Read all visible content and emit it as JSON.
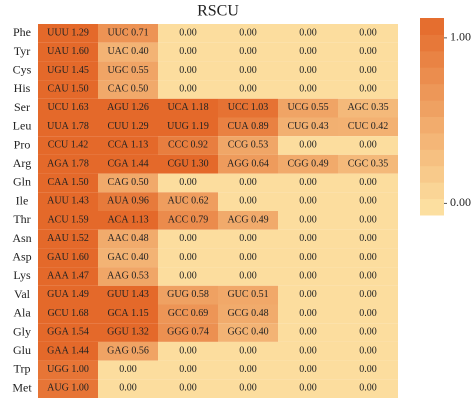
{
  "chart_data": {
    "type": "heatmap",
    "title": "RSCU",
    "low_color": "#fde4a5",
    "high_color": "#e4692a",
    "clim": [
      -0.07,
      1.12
    ],
    "cticks": [
      {
        "value": 0,
        "label": "0.00"
      },
      {
        "value": 1,
        "label": "1.00"
      }
    ],
    "rows": [
      {
        "name": "Phe",
        "codons": [
          "UUU",
          "UUC",
          null,
          null,
          null,
          null
        ],
        "values": [
          1.29,
          0.71,
          0,
          0,
          0,
          0
        ],
        "value_labels": [
          "1.29",
          "0.71",
          "0.00",
          "0.00",
          "0.00",
          "0.00"
        ]
      },
      {
        "name": "Tyr",
        "codons": [
          "UAU",
          "UAC",
          null,
          null,
          null,
          null
        ],
        "values": [
          1.6,
          0.4,
          0,
          0,
          0,
          0
        ],
        "value_labels": [
          "1.60",
          "0.40",
          "0.00",
          "0.00",
          "0.00",
          "0.00"
        ]
      },
      {
        "name": "Cys",
        "codons": [
          "UGU",
          "UGC",
          null,
          null,
          null,
          null
        ],
        "values": [
          1.45,
          0.55,
          0,
          0,
          0,
          0
        ],
        "value_labels": [
          "1.45",
          "0.55",
          "0.00",
          "0.00",
          "0.00",
          "0.00"
        ]
      },
      {
        "name": "His",
        "codons": [
          "CAU",
          "CAC",
          null,
          null,
          null,
          null
        ],
        "values": [
          1.5,
          0.5,
          0,
          0,
          0,
          0
        ],
        "value_labels": [
          "1.50",
          "0.50",
          "0.00",
          "0.00",
          "0.00",
          "0.00"
        ]
      },
      {
        "name": "Ser",
        "codons": [
          "UCU",
          "AGU",
          "UCA",
          "UCC",
          "UCG",
          "AGC"
        ],
        "values": [
          1.63,
          1.26,
          1.18,
          1.03,
          0.55,
          0.35
        ],
        "value_labels": [
          "1.63",
          "1.26",
          "1.18",
          "1.03",
          "0.55",
          "0.35"
        ]
      },
      {
        "name": "Leu",
        "codons": [
          "UUA",
          "CUU",
          "UUG",
          "CUA",
          "CUG",
          "CUC"
        ],
        "values": [
          1.78,
          1.29,
          1.19,
          0.89,
          0.43,
          0.42
        ],
        "value_labels": [
          "1.78",
          "1.29",
          "1.19",
          "0.89",
          "0.43",
          "0.42"
        ]
      },
      {
        "name": "Pro",
        "codons": [
          "CCU",
          "CCA",
          "CCC",
          "CCG",
          null,
          null
        ],
        "values": [
          1.42,
          1.13,
          0.92,
          0.53,
          0,
          0
        ],
        "value_labels": [
          "1.42",
          "1.13",
          "0.92",
          "0.53",
          "0.00",
          "0.00"
        ]
      },
      {
        "name": "Arg",
        "codons": [
          "AGA",
          "CGA",
          "CGU",
          "AGG",
          "CGG",
          "CGC"
        ],
        "values": [
          1.78,
          1.44,
          1.3,
          0.64,
          0.49,
          0.35
        ],
        "value_labels": [
          "1.78",
          "1.44",
          "1.30",
          "0.64",
          "0.49",
          "0.35"
        ]
      },
      {
        "name": "Gln",
        "codons": [
          "CAA",
          "CAG",
          null,
          null,
          null,
          null
        ],
        "values": [
          1.5,
          0.5,
          0,
          0,
          0,
          0
        ],
        "value_labels": [
          "1.50",
          "0.50",
          "0.00",
          "0.00",
          "0.00",
          "0.00"
        ]
      },
      {
        "name": "Ile",
        "codons": [
          "AUU",
          "AUA",
          "AUC",
          null,
          null,
          null
        ],
        "values": [
          1.43,
          0.96,
          0.62,
          0,
          0,
          0
        ],
        "value_labels": [
          "1.43",
          "0.96",
          "0.62",
          "0.00",
          "0.00",
          "0.00"
        ]
      },
      {
        "name": "Thr",
        "codons": [
          "ACU",
          "ACA",
          "ACC",
          "ACG",
          null,
          null
        ],
        "values": [
          1.59,
          1.13,
          0.79,
          0.49,
          0,
          0
        ],
        "value_labels": [
          "1.59",
          "1.13",
          "0.79",
          "0.49",
          "0.00",
          "0.00"
        ]
      },
      {
        "name": "Asn",
        "codons": [
          "AAU",
          "AAC",
          null,
          null,
          null,
          null
        ],
        "values": [
          1.52,
          0.48,
          0,
          0,
          0,
          0
        ],
        "value_labels": [
          "1.52",
          "0.48",
          "0.00",
          "0.00",
          "0.00",
          "0.00"
        ]
      },
      {
        "name": "Asp",
        "codons": [
          "GAU",
          "GAC",
          null,
          null,
          null,
          null
        ],
        "values": [
          1.6,
          0.4,
          0,
          0,
          0,
          0
        ],
        "value_labels": [
          "1.60",
          "0.40",
          "0.00",
          "0.00",
          "0.00",
          "0.00"
        ]
      },
      {
        "name": "Lys",
        "codons": [
          "AAA",
          "AAG",
          null,
          null,
          null,
          null
        ],
        "values": [
          1.47,
          0.53,
          0,
          0,
          0,
          0
        ],
        "value_labels": [
          "1.47",
          "0.53",
          "0.00",
          "0.00",
          "0.00",
          "0.00"
        ]
      },
      {
        "name": "Val",
        "codons": [
          "GUA",
          "GUU",
          "GUG",
          "GUC",
          null,
          null
        ],
        "values": [
          1.49,
          1.43,
          0.58,
          0.51,
          0,
          0
        ],
        "value_labels": [
          "1.49",
          "1.43",
          "0.58",
          "0.51",
          "0.00",
          "0.00"
        ]
      },
      {
        "name": "Ala",
        "codons": [
          "GCU",
          "GCA",
          "GCC",
          "GCG",
          null,
          null
        ],
        "values": [
          1.68,
          1.15,
          0.69,
          0.48,
          0,
          0
        ],
        "value_labels": [
          "1.68",
          "1.15",
          "0.69",
          "0.48",
          "0.00",
          "0.00"
        ]
      },
      {
        "name": "Gly",
        "codons": [
          "GGA",
          "GGU",
          "GGG",
          "GGC",
          null,
          null
        ],
        "values": [
          1.54,
          1.32,
          0.74,
          0.4,
          0,
          0
        ],
        "value_labels": [
          "1.54",
          "1.32",
          "0.74",
          "0.40",
          "0.00",
          "0.00"
        ]
      },
      {
        "name": "Glu",
        "codons": [
          "GAA",
          "GAG",
          null,
          null,
          null,
          null
        ],
        "values": [
          1.44,
          0.56,
          0,
          0,
          0,
          0
        ],
        "value_labels": [
          "1.44",
          "0.56",
          "0.00",
          "0.00",
          "0.00",
          "0.00"
        ]
      },
      {
        "name": "Trp",
        "codons": [
          "UGG",
          null,
          null,
          null,
          null,
          null
        ],
        "values": [
          1,
          0,
          0,
          0,
          0,
          0
        ],
        "value_labels": [
          "1.00",
          "0.00",
          "0.00",
          "0.00",
          "0.00",
          "0.00"
        ]
      },
      {
        "name": "Met",
        "codons": [
          "AUG",
          null,
          null,
          null,
          null,
          null
        ],
        "values": [
          1,
          0,
          0,
          0,
          0,
          0
        ],
        "value_labels": [
          "1.00",
          "0.00",
          "0.00",
          "0.00",
          "0.00",
          "0.00"
        ]
      }
    ]
  }
}
